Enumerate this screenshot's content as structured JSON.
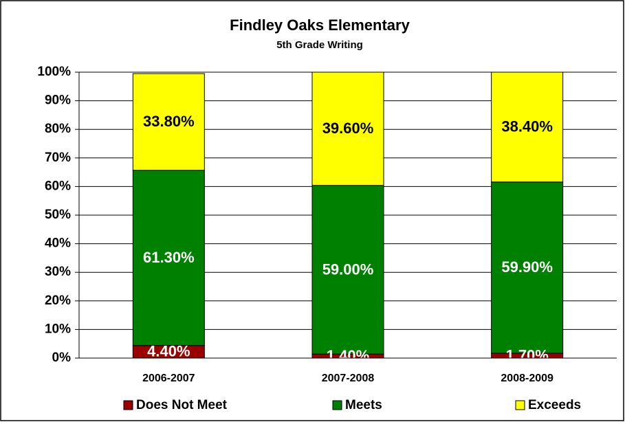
{
  "chart_data": {
    "type": "stacked_bar",
    "title": "Findley Oaks Elementary",
    "subtitle": "5th Grade Writing",
    "categories": [
      "2006-2007",
      "2007-2008",
      "2008-2009"
    ],
    "series": [
      {
        "name": "Does Not Meet",
        "color": "#990000",
        "label_color": "#ffffff",
        "values": [
          4.4,
          1.4,
          1.7
        ],
        "value_labels": [
          "4.40%",
          "1.40%",
          "1.70%"
        ]
      },
      {
        "name": "Meets",
        "color": "#008000",
        "label_color": "#ffffff",
        "values": [
          61.3,
          59.0,
          59.9
        ],
        "value_labels": [
          "61.30%",
          "59.00%",
          "59.90%"
        ]
      },
      {
        "name": "Exceeds",
        "color": "#ffff00",
        "label_color": "#000000",
        "values": [
          33.8,
          39.6,
          38.4
        ],
        "value_labels": [
          "33.80%",
          "39.60%",
          "38.40%"
        ]
      }
    ],
    "ylim": [
      0,
      100
    ],
    "yticks": [
      {
        "value": 0,
        "label": "0%"
      },
      {
        "value": 10,
        "label": "10%"
      },
      {
        "value": 20,
        "label": "20%"
      },
      {
        "value": 30,
        "label": "30%"
      },
      {
        "value": 40,
        "label": "40%"
      },
      {
        "value": 50,
        "label": "50%"
      },
      {
        "value": 60,
        "label": "60%"
      },
      {
        "value": 70,
        "label": "70%"
      },
      {
        "value": 80,
        "label": "80%"
      },
      {
        "value": 90,
        "label": "90%"
      },
      {
        "value": 100,
        "label": "100%"
      }
    ],
    "grid": true,
    "legend": "bottom"
  }
}
